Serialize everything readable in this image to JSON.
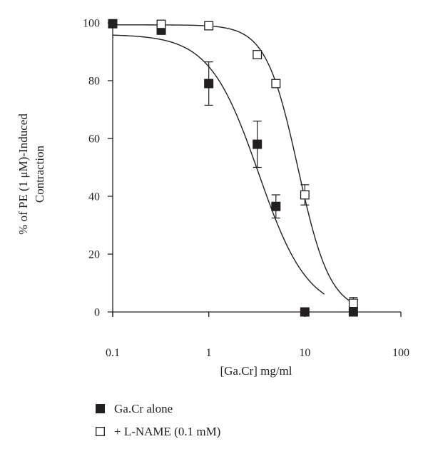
{
  "chart_data": {
    "type": "scatter",
    "title": "",
    "xlabel": "[Ga.Cr] mg/ml",
    "ylabel_line1": "% of PE (1 μM)-Induced",
    "ylabel_line2": "Contraction",
    "xscale": "log",
    "xlim": [
      0.1,
      100
    ],
    "ylim": [
      0,
      100
    ],
    "xticks": [
      {
        "value": 0.1,
        "label": "0.1"
      },
      {
        "value": 1,
        "label": "1"
      },
      {
        "value": 10,
        "label": "10"
      },
      {
        "value": 100,
        "label": "100"
      }
    ],
    "yticks": [
      {
        "value": 0,
        "label": "0"
      },
      {
        "value": 20,
        "label": "20"
      },
      {
        "value": 40,
        "label": "40"
      },
      {
        "value": 60,
        "label": "60"
      },
      {
        "value": 80,
        "label": "80"
      },
      {
        "value": 100,
        "label": "100"
      }
    ],
    "grid": false,
    "legend_position": "bottom-left",
    "series": [
      {
        "name": "Ga.Cr alone",
        "marker": "filled-square",
        "color": "#231f20",
        "points": [
          {
            "x": 0.1,
            "y": 99.7,
            "err": 0
          },
          {
            "x": 0.32,
            "y": 97.5,
            "err": 1.5
          },
          {
            "x": 1.0,
            "y": 79.0,
            "err": 7.5
          },
          {
            "x": 3.2,
            "y": 58.0,
            "err": 8.0
          },
          {
            "x": 5.0,
            "y": 36.5,
            "err": 4.0
          },
          {
            "x": 10.0,
            "y": 0.0,
            "err": 0
          },
          {
            "x": 32.0,
            "y": 0.0,
            "err": 0
          }
        ],
        "fit": {
          "top": 96,
          "ec50": 3.3,
          "hill": 1.7,
          "x_range": [
            0.1,
            16
          ]
        }
      },
      {
        "name": "+ L-NAME (0.1 mM)",
        "marker": "open-square",
        "color": "#231f20",
        "points": [
          {
            "x": 0.32,
            "y": 99.5,
            "err": 0
          },
          {
            "x": 1.0,
            "y": 99.0,
            "err": 0
          },
          {
            "x": 3.2,
            "y": 89.0,
            "err": 0
          },
          {
            "x": 5.0,
            "y": 79.0,
            "err": 0
          },
          {
            "x": 10.0,
            "y": 40.5,
            "err": 3.5
          },
          {
            "x": 32.0,
            "y": 3.0,
            "err": 2.0
          }
        ],
        "fit": {
          "top": 99.3,
          "ec50": 8.5,
          "hill": 2.6,
          "x_range": [
            0.1,
            32
          ]
        }
      }
    ]
  }
}
